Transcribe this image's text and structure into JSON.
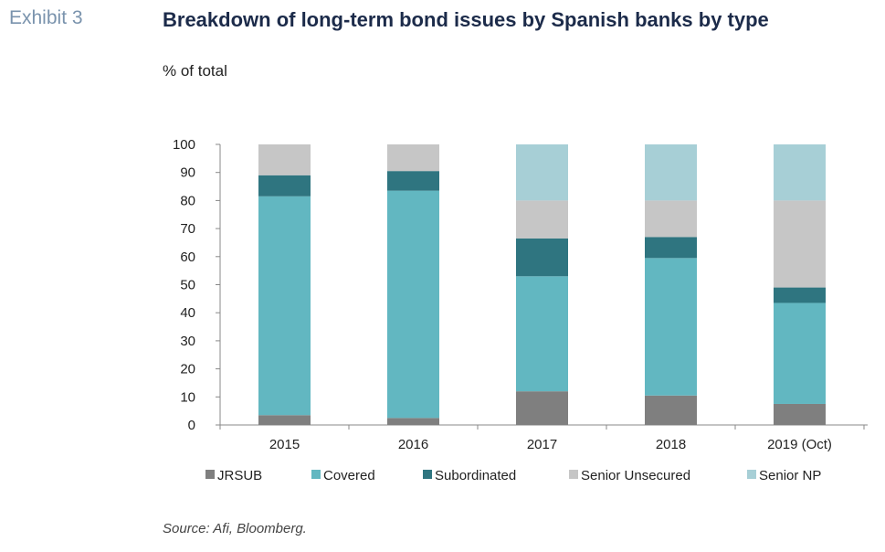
{
  "header": {
    "exhibit": "Exhibit 3",
    "title": "Breakdown of long-term bond issues by Spanish banks by type",
    "unit": "% of total"
  },
  "footer": {
    "source": "Source: Afi, Bloomberg."
  },
  "chart_data": {
    "type": "bar",
    "stacked": true,
    "categories": [
      "2015",
      "2016",
      "2017",
      "2018",
      "2019 (Oct)"
    ],
    "ylim": [
      0,
      100
    ],
    "yticks": [
      0,
      10,
      20,
      30,
      40,
      50,
      60,
      70,
      80,
      90,
      100
    ],
    "grid": false,
    "legend_position": "bottom",
    "series": [
      {
        "name": "JRSUB",
        "color": "#7f7f7f",
        "values": [
          3.5,
          2.5,
          12,
          10.5,
          7.5
        ]
      },
      {
        "name": "Covered",
        "color": "#62b7c1",
        "values": [
          78,
          81,
          41,
          49,
          36
        ]
      },
      {
        "name": "Subordinated",
        "color": "#2f7580",
        "values": [
          7.5,
          7,
          13.5,
          7.5,
          5.5
        ]
      },
      {
        "name": "Senior Unsecured",
        "color": "#c6c6c6",
        "values": [
          11,
          9.5,
          13.5,
          13,
          31
        ]
      },
      {
        "name": "Senior NP",
        "color": "#a7cfd6",
        "values": [
          0,
          0,
          20,
          20,
          20
        ]
      }
    ]
  }
}
